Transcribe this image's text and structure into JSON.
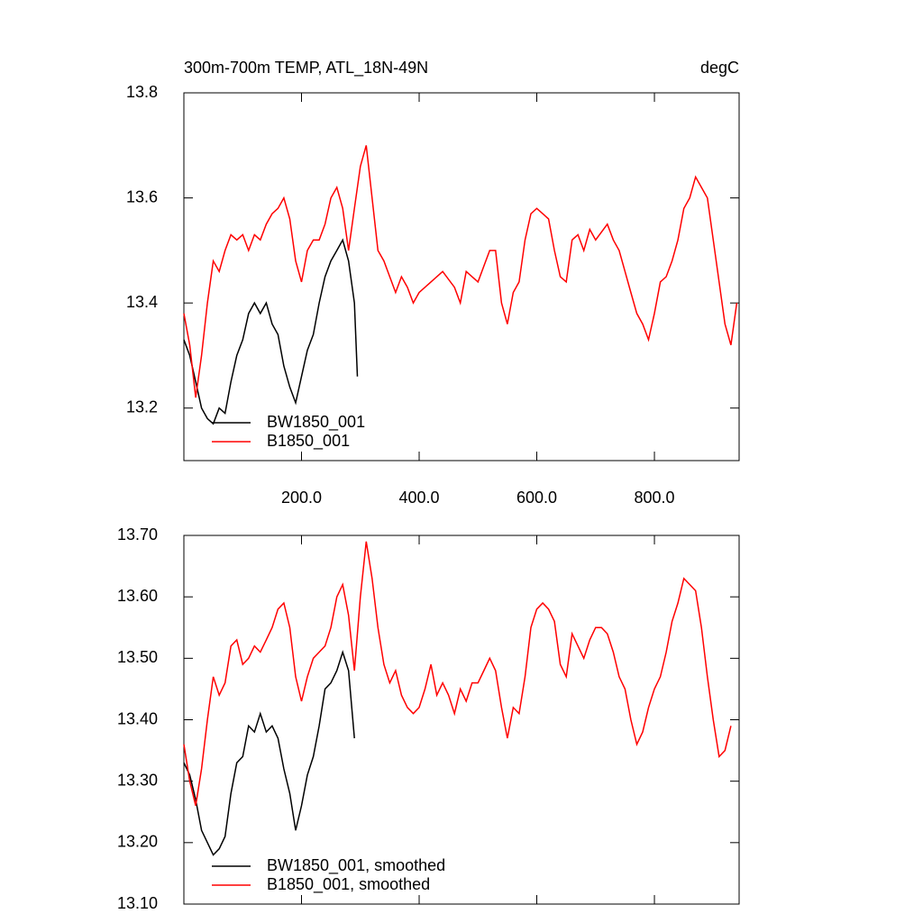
{
  "chart_data": [
    {
      "type": "line",
      "title": "300m-700m TEMP, ATL_18N-49N",
      "units": "degC",
      "xlim": [
        0,
        944
      ],
      "ylim": [
        13.1,
        13.8
      ],
      "xticks": [
        {
          "value": 200,
          "label": "200.0"
        },
        {
          "value": 400,
          "label": "400.0"
        },
        {
          "value": 600,
          "label": "600.0"
        },
        {
          "value": 800,
          "label": "800.0"
        }
      ],
      "show_xtick_labels": true,
      "yticks": [
        13.2,
        13.4,
        13.6,
        13.8
      ],
      "legend": "lower left",
      "series": [
        {
          "name": "BW1850_001",
          "color": "#000000",
          "x": [
            0,
            10,
            20,
            30,
            40,
            50,
            60,
            70,
            80,
            90,
            100,
            110,
            120,
            130,
            140,
            150,
            160,
            170,
            180,
            190,
            200,
            210,
            220,
            230,
            240,
            250,
            260,
            270,
            280,
            290,
            295
          ],
          "values": [
            13.33,
            13.3,
            13.25,
            13.2,
            13.18,
            13.17,
            13.2,
            13.19,
            13.25,
            13.3,
            13.33,
            13.38,
            13.4,
            13.38,
            13.4,
            13.36,
            13.34,
            13.28,
            13.24,
            13.21,
            13.26,
            13.31,
            13.34,
            13.4,
            13.45,
            13.48,
            13.5,
            13.52,
            13.48,
            13.4,
            13.26
          ]
        },
        {
          "name": "B1850_001",
          "color": "#ff0000",
          "x": [
            0,
            10,
            20,
            30,
            40,
            50,
            60,
            70,
            80,
            90,
            100,
            110,
            120,
            130,
            140,
            150,
            160,
            170,
            180,
            190,
            200,
            210,
            220,
            230,
            240,
            250,
            260,
            270,
            280,
            290,
            300,
            310,
            320,
            330,
            340,
            350,
            360,
            370,
            380,
            390,
            400,
            420,
            440,
            460,
            470,
            480,
            500,
            510,
            520,
            530,
            540,
            550,
            560,
            570,
            580,
            590,
            600,
            610,
            620,
            630,
            640,
            650,
            660,
            670,
            680,
            690,
            700,
            720,
            730,
            740,
            750,
            760,
            770,
            780,
            790,
            800,
            810,
            820,
            830,
            840,
            850,
            860,
            870,
            880,
            890,
            900,
            910,
            920,
            930,
            940
          ],
          "values": [
            13.38,
            13.32,
            13.22,
            13.3,
            13.4,
            13.48,
            13.46,
            13.5,
            13.53,
            13.52,
            13.53,
            13.5,
            13.53,
            13.52,
            13.55,
            13.57,
            13.58,
            13.6,
            13.56,
            13.48,
            13.44,
            13.5,
            13.52,
            13.52,
            13.55,
            13.6,
            13.62,
            13.58,
            13.5,
            13.58,
            13.66,
            13.7,
            13.6,
            13.5,
            13.48,
            13.45,
            13.42,
            13.45,
            13.43,
            13.4,
            13.42,
            13.44,
            13.46,
            13.43,
            13.4,
            13.46,
            13.44,
            13.47,
            13.5,
            13.5,
            13.4,
            13.36,
            13.42,
            13.44,
            13.52,
            13.57,
            13.58,
            13.57,
            13.56,
            13.5,
            13.45,
            13.44,
            13.52,
            13.53,
            13.5,
            13.54,
            13.52,
            13.55,
            13.52,
            13.5,
            13.46,
            13.42,
            13.38,
            13.36,
            13.33,
            13.38,
            13.44,
            13.45,
            13.48,
            13.52,
            13.58,
            13.6,
            13.64,
            13.62,
            13.6,
            13.52,
            13.44,
            13.36,
            13.32,
            13.4
          ]
        }
      ]
    },
    {
      "type": "line",
      "xlim": [
        0,
        944
      ],
      "ylim": [
        13.1,
        13.7
      ],
      "xticks": [
        200,
        400,
        600,
        800
      ],
      "show_xtick_labels": false,
      "yticks": [
        {
          "value": 13.1,
          "label": "13.10"
        },
        {
          "value": 13.2,
          "label": "13.20"
        },
        {
          "value": 13.3,
          "label": "13.30"
        },
        {
          "value": 13.4,
          "label": "13.40"
        },
        {
          "value": 13.5,
          "label": "13.50"
        },
        {
          "value": 13.6,
          "label": "13.60"
        },
        {
          "value": 13.7,
          "label": "13.70"
        }
      ],
      "legend": "lower left",
      "series": [
        {
          "name": "BW1850_001, smoothed",
          "color": "#000000",
          "x": [
            0,
            10,
            20,
            30,
            40,
            50,
            60,
            70,
            80,
            90,
            100,
            110,
            120,
            130,
            140,
            150,
            160,
            170,
            180,
            190,
            200,
            210,
            220,
            230,
            240,
            250,
            260,
            270,
            280,
            290
          ],
          "values": [
            13.33,
            13.31,
            13.27,
            13.22,
            13.2,
            13.18,
            13.19,
            13.21,
            13.28,
            13.33,
            13.34,
            13.39,
            13.38,
            13.41,
            13.38,
            13.39,
            13.37,
            13.32,
            13.28,
            13.22,
            13.26,
            13.31,
            13.34,
            13.39,
            13.45,
            13.46,
            13.48,
            13.51,
            13.48,
            13.37
          ]
        },
        {
          "name": "B1850_001, smoothed",
          "color": "#ff0000",
          "x": [
            0,
            10,
            20,
            30,
            40,
            50,
            60,
            70,
            80,
            90,
            100,
            110,
            120,
            130,
            140,
            150,
            160,
            170,
            180,
            190,
            200,
            210,
            220,
            230,
            240,
            250,
            260,
            270,
            280,
            290,
            300,
            310,
            320,
            330,
            340,
            350,
            360,
            370,
            380,
            390,
            400,
            410,
            420,
            430,
            440,
            450,
            460,
            470,
            480,
            490,
            500,
            510,
            520,
            530,
            540,
            550,
            560,
            570,
            580,
            590,
            600,
            610,
            620,
            630,
            640,
            650,
            660,
            670,
            680,
            690,
            700,
            710,
            720,
            730,
            740,
            750,
            760,
            770,
            780,
            790,
            800,
            810,
            820,
            830,
            840,
            850,
            860,
            870,
            880,
            890,
            900,
            910,
            920,
            930
          ],
          "values": [
            13.36,
            13.3,
            13.26,
            13.32,
            13.4,
            13.47,
            13.44,
            13.46,
            13.52,
            13.53,
            13.49,
            13.5,
            13.52,
            13.51,
            13.53,
            13.55,
            13.58,
            13.59,
            13.55,
            13.47,
            13.43,
            13.47,
            13.5,
            13.51,
            13.52,
            13.55,
            13.6,
            13.62,
            13.57,
            13.48,
            13.6,
            13.69,
            13.63,
            13.55,
            13.49,
            13.46,
            13.48,
            13.44,
            13.42,
            13.41,
            13.42,
            13.45,
            13.49,
            13.44,
            13.46,
            13.44,
            13.41,
            13.45,
            13.43,
            13.46,
            13.46,
            13.48,
            13.5,
            13.48,
            13.42,
            13.37,
            13.42,
            13.41,
            13.47,
            13.55,
            13.58,
            13.59,
            13.58,
            13.56,
            13.49,
            13.47,
            13.54,
            13.52,
            13.5,
            13.53,
            13.55,
            13.55,
            13.54,
            13.51,
            13.47,
            13.45,
            13.4,
            13.36,
            13.38,
            13.42,
            13.45,
            13.47,
            13.51,
            13.56,
            13.59,
            13.63,
            13.62,
            13.61,
            13.55,
            13.47,
            13.4,
            13.34,
            13.35,
            13.39
          ]
        }
      ]
    }
  ]
}
